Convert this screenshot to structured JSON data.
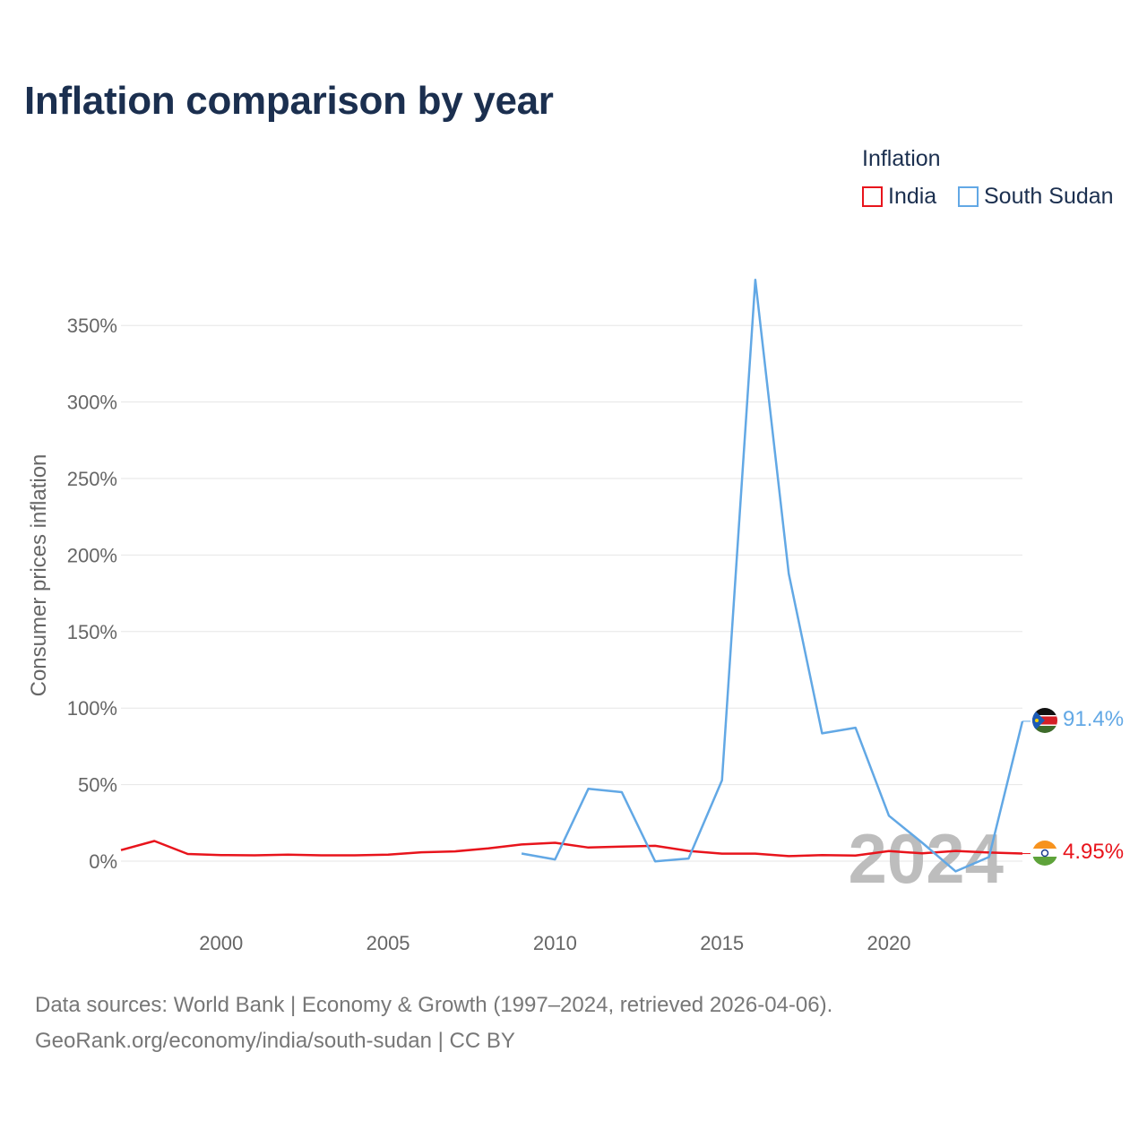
{
  "chart_data": {
    "type": "line",
    "title": "Inflation comparison by year",
    "legend_title": "Inflation",
    "ylabel": "Consumer prices inflation",
    "xlabel": "",
    "xlim": [
      1997,
      2024
    ],
    "ylim": [
      -30,
      380
    ],
    "y_ticks": [
      0,
      50,
      100,
      150,
      200,
      250,
      300,
      350
    ],
    "y_tick_labels": [
      "0%",
      "50%",
      "100%",
      "150%",
      "200%",
      "250%",
      "300%",
      "350%"
    ],
    "x_ticks": [
      2000,
      2005,
      2010,
      2015,
      2020
    ],
    "x_tick_labels": [
      "2000",
      "2005",
      "2010",
      "2015",
      "2020"
    ],
    "grid": true,
    "legend_position": "top-right",
    "watermark": "2024",
    "series": [
      {
        "name": "India",
        "color": "#e8141c",
        "flag": "india-flag",
        "end_label": "4.95%",
        "points": [
          [
            1997,
            7.2
          ],
          [
            1998,
            13.2
          ],
          [
            1999,
            4.7
          ],
          [
            2000,
            4.0
          ],
          [
            2001,
            3.8
          ],
          [
            2002,
            4.3
          ],
          [
            2003,
            3.8
          ],
          [
            2004,
            3.8
          ],
          [
            2005,
            4.2
          ],
          [
            2006,
            5.8
          ],
          [
            2007,
            6.4
          ],
          [
            2008,
            8.4
          ],
          [
            2009,
            10.9
          ],
          [
            2010,
            12.0
          ],
          [
            2011,
            8.9
          ],
          [
            2012,
            9.5
          ],
          [
            2013,
            10.0
          ],
          [
            2014,
            6.7
          ],
          [
            2015,
            4.9
          ],
          [
            2016,
            4.9
          ],
          [
            2017,
            3.3
          ],
          [
            2018,
            3.9
          ],
          [
            2019,
            3.7
          ],
          [
            2020,
            6.6
          ],
          [
            2021,
            5.1
          ],
          [
            2022,
            6.7
          ],
          [
            2023,
            5.6
          ],
          [
            2024,
            4.95
          ]
        ]
      },
      {
        "name": "South Sudan",
        "color": "#62a8e5",
        "flag": "south-sudan-flag",
        "end_label": "91.4%",
        "points": [
          [
            2009,
            5.0
          ],
          [
            2010,
            1.1
          ],
          [
            2011,
            47.3
          ],
          [
            2012,
            45.1
          ],
          [
            2013,
            -0.1
          ],
          [
            2014,
            1.7
          ],
          [
            2015,
            52.8
          ],
          [
            2016,
            379.8
          ],
          [
            2017,
            187.9
          ],
          [
            2018,
            83.5
          ],
          [
            2019,
            87.2
          ],
          [
            2020,
            29.7
          ],
          [
            2021,
            12.0
          ],
          [
            2022,
            -6.7
          ],
          [
            2023,
            2.7
          ],
          [
            2024,
            91.4
          ]
        ]
      }
    ]
  },
  "source": {
    "line1": "Data sources: World Bank | Economy & Growth (1997–2024, retrieved 2026-04-06).",
    "line2": "GeoRank.org/economy/india/south-sudan | CC BY"
  }
}
